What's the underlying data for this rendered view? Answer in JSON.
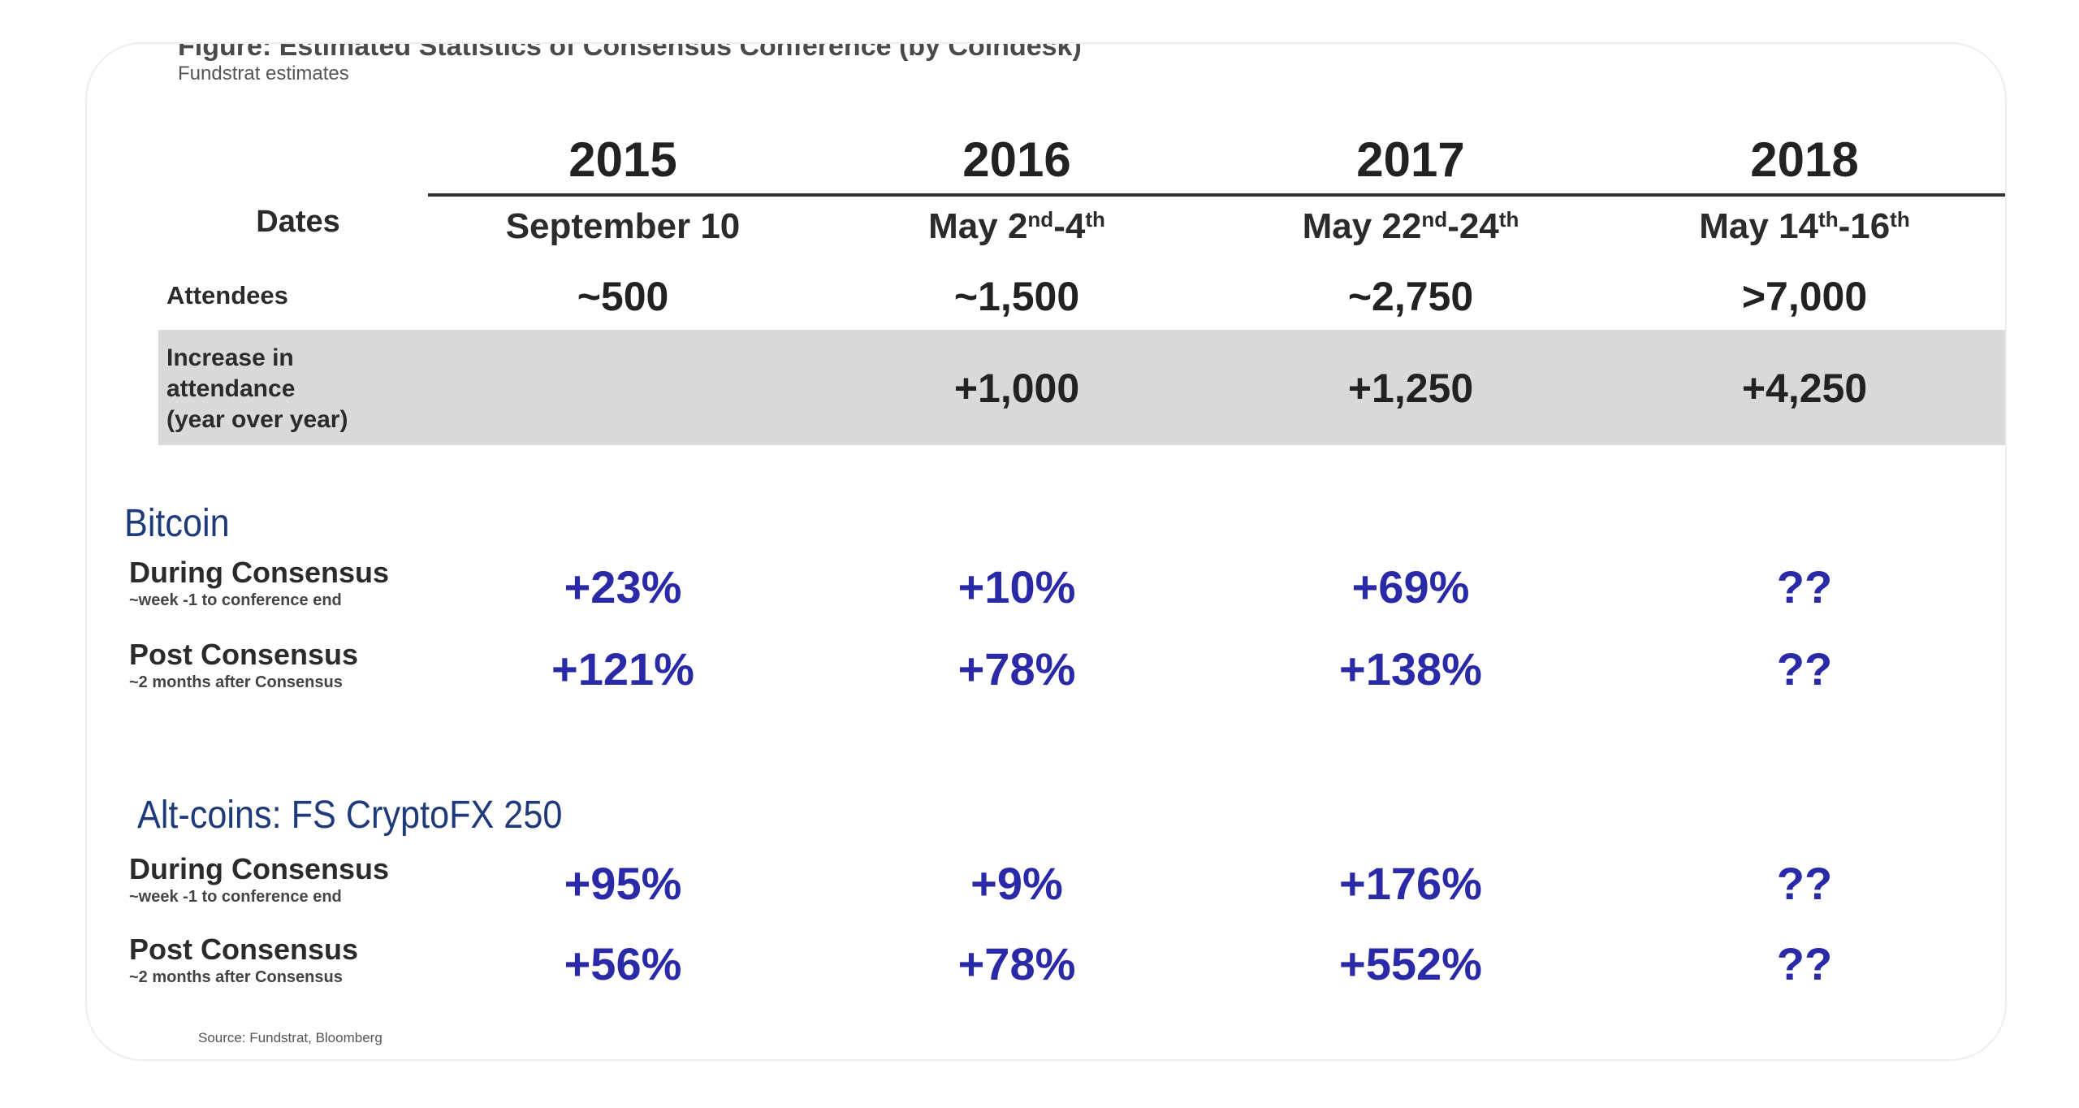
{
  "figure": {
    "title": "Figure: Estimated Statistics of Consensus Conference (by Coindesk)",
    "subtitle": "Fundstrat estimates"
  },
  "years": [
    "2015",
    "2016",
    "2017",
    "2018"
  ],
  "rows": {
    "dates": {
      "label": "Dates",
      "values": [
        {
          "text": "September 10"
        },
        {
          "a": "May 2",
          "a_sup": "nd",
          "b": "-4",
          "b_sup": "th"
        },
        {
          "a": "May 22",
          "a_sup": "nd",
          "b": "-24",
          "b_sup": "th"
        },
        {
          "a": "May 14",
          "a_sup": "th",
          "b": "-16",
          "b_sup": "th"
        }
      ]
    },
    "attendees": {
      "label": "Attendees",
      "values": [
        "~500",
        "~1,500",
        "~2,750",
        ">7,000"
      ]
    },
    "increase": {
      "label_lines": [
        "Increase in",
        "attendance",
        "(year over year)"
      ],
      "values": [
        "",
        "+1,000",
        "+1,250",
        "+4,250"
      ]
    }
  },
  "bitcoin": {
    "title": "Bitcoin",
    "during": {
      "label": "During Consensus",
      "note": "~week -1 to conference end",
      "values": [
        "+23%",
        "+10%",
        "+69%",
        "??"
      ]
    },
    "post": {
      "label": "Post Consensus",
      "note": "~2 months after Consensus",
      "values": [
        "+121%",
        "+78%",
        "+138%",
        "??"
      ]
    }
  },
  "altcoins": {
    "title": "Alt-coins: FS CryptoFX 250",
    "during": {
      "label": "During Consensus",
      "note": "~week -1 to conference end",
      "values": [
        "+95%",
        "+9%",
        "+176%",
        "??"
      ]
    },
    "post": {
      "label": "Post Consensus",
      "note": "~2 months after Consensus",
      "values": [
        "+56%",
        "+78%",
        "+552%",
        "??"
      ]
    }
  },
  "source": "Source: Fundstrat, Bloomberg",
  "colors": {
    "percent_text": "#2a2aa8",
    "section_title": "#1f3a7a",
    "band": "#d9d9d9"
  }
}
